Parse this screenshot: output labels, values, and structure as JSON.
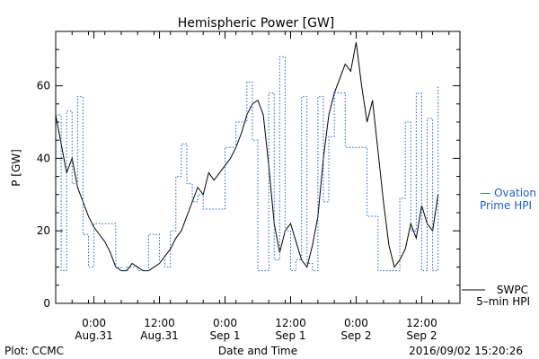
{
  "chart_data": {
    "type": "line",
    "title": "Hemispheric Power [GW]",
    "ylabel": "P [GW]",
    "xlabel": "Date and Time",
    "footer_left": "Plot: CCMC",
    "footer_right": "2016/09/02 15:20:26",
    "ylim": [
      0,
      75
    ],
    "yticks": [
      0,
      20,
      40,
      60
    ],
    "xlim": [
      "2016-08-30T17:00",
      "2016-09-02T19:00"
    ],
    "xticks": [
      {
        "t": "2016-08-31T00:00",
        "label1": "0:00",
        "label2": "Aug.31"
      },
      {
        "t": "2016-08-31T12:00",
        "label1": "12:00",
        "label2": "Aug.31"
      },
      {
        "t": "2016-09-01T00:00",
        "label1": "0:00",
        "label2": "Sep 1"
      },
      {
        "t": "2016-09-01T12:00",
        "label1": "12:00",
        "label2": "Sep 1"
      },
      {
        "t": "2016-09-02T00:00",
        "label1": "0:00",
        "label2": "Sep 2"
      },
      {
        "t": "2016-09-02T12:00",
        "label1": "12:00",
        "label2": "Sep 2"
      }
    ],
    "series": [
      {
        "name": "SWPC 5-min HPI",
        "color": "#000000",
        "style": "solid",
        "x": [
          "2016-08-30T17:00",
          "2016-08-30T18:00",
          "2016-08-30T19:00",
          "2016-08-30T20:00",
          "2016-08-30T21:00",
          "2016-08-30T22:00",
          "2016-08-30T23:00",
          "2016-08-31T00:00",
          "2016-08-31T01:00",
          "2016-08-31T02:00",
          "2016-08-31T03:00",
          "2016-08-31T04:00",
          "2016-08-31T05:00",
          "2016-08-31T06:00",
          "2016-08-31T07:00",
          "2016-08-31T08:00",
          "2016-08-31T09:00",
          "2016-08-31T10:00",
          "2016-08-31T11:00",
          "2016-08-31T12:00",
          "2016-08-31T13:00",
          "2016-08-31T14:00",
          "2016-08-31T15:00",
          "2016-08-31T16:00",
          "2016-08-31T17:00",
          "2016-08-31T18:00",
          "2016-08-31T19:00",
          "2016-08-31T20:00",
          "2016-08-31T21:00",
          "2016-08-31T22:00",
          "2016-08-31T23:00",
          "2016-09-01T00:00",
          "2016-09-01T01:00",
          "2016-09-01T02:00",
          "2016-09-01T03:00",
          "2016-09-01T04:00",
          "2016-09-01T05:00",
          "2016-09-01T06:00",
          "2016-09-01T07:00",
          "2016-09-01T08:00",
          "2016-09-01T09:00",
          "2016-09-01T10:00",
          "2016-09-01T11:00",
          "2016-09-01T12:00",
          "2016-09-01T13:00",
          "2016-09-01T14:00",
          "2016-09-01T15:00",
          "2016-09-01T16:00",
          "2016-09-01T17:00",
          "2016-09-01T18:00",
          "2016-09-01T19:00",
          "2016-09-01T20:00",
          "2016-09-01T21:00",
          "2016-09-01T22:00",
          "2016-09-01T23:00",
          "2016-09-02T00:00",
          "2016-09-02T01:00",
          "2016-09-02T02:00",
          "2016-09-02T03:00",
          "2016-09-02T04:00",
          "2016-09-02T05:00",
          "2016-09-02T06:00",
          "2016-09-02T07:00",
          "2016-09-02T08:00",
          "2016-09-02T09:00",
          "2016-09-02T10:00",
          "2016-09-02T11:00",
          "2016-09-02T12:00",
          "2016-09-02T13:00",
          "2016-09-02T14:00",
          "2016-09-02T15:00"
        ],
        "y": [
          52,
          44,
          36,
          40,
          32,
          28,
          24,
          21,
          19,
          17,
          14,
          10,
          9,
          9,
          11,
          10,
          9,
          9,
          10,
          11,
          13,
          15,
          18,
          20,
          24,
          28,
          32,
          30,
          36,
          34,
          36,
          38,
          40,
          43,
          47,
          52,
          55,
          56,
          52,
          38,
          22,
          14,
          20,
          22,
          17,
          12,
          10,
          16,
          24,
          40,
          52,
          58,
          62,
          66,
          64,
          72,
          60,
          50,
          56,
          42,
          28,
          16,
          10,
          12,
          15,
          22,
          18,
          27,
          22,
          20,
          30
        ]
      },
      {
        "name": "Ovation Prime HPI",
        "color": "#1f5fbf",
        "style": "dotted",
        "x": [
          "2016-08-30T17:00",
          "2016-08-30T18:00",
          "2016-08-30T19:00",
          "2016-08-30T20:00",
          "2016-08-30T21:00",
          "2016-08-30T22:00",
          "2016-08-30T23:00",
          "2016-08-31T00:00",
          "2016-08-31T02:00",
          "2016-08-31T04:00",
          "2016-08-31T05:00",
          "2016-08-31T06:00",
          "2016-08-31T08:00",
          "2016-08-31T10:00",
          "2016-08-31T12:00",
          "2016-08-31T13:00",
          "2016-08-31T14:00",
          "2016-08-31T15:00",
          "2016-08-31T16:00",
          "2016-08-31T17:00",
          "2016-08-31T18:00",
          "2016-08-31T19:00",
          "2016-08-31T20:00",
          "2016-08-31T21:00",
          "2016-08-31T22:00",
          "2016-09-01T00:00",
          "2016-09-01T02:00",
          "2016-09-01T04:00",
          "2016-09-01T05:00",
          "2016-09-01T06:00",
          "2016-09-01T07:00",
          "2016-09-01T08:00",
          "2016-09-01T09:00",
          "2016-09-01T10:00",
          "2016-09-01T11:00",
          "2016-09-01T12:00",
          "2016-09-01T13:00",
          "2016-09-01T14:00",
          "2016-09-01T15:00",
          "2016-09-01T16:00",
          "2016-09-01T17:00",
          "2016-09-01T18:00",
          "2016-09-01T19:00",
          "2016-09-01T20:00",
          "2016-09-01T22:00",
          "2016-09-02T00:00",
          "2016-09-02T02:00",
          "2016-09-02T04:00",
          "2016-09-02T06:00",
          "2016-09-02T08:00",
          "2016-09-02T09:00",
          "2016-09-02T10:00",
          "2016-09-02T11:00",
          "2016-09-02T12:00",
          "2016-09-02T13:00",
          "2016-09-02T14:00",
          "2016-09-02T15:00"
        ],
        "y": [
          52,
          9,
          53,
          33,
          57,
          19,
          10,
          22,
          22,
          10,
          9,
          10,
          9,
          19,
          12,
          10,
          20,
          35,
          44,
          33,
          28,
          30,
          26,
          26,
          26,
          43,
          50,
          61,
          45,
          9,
          9,
          58,
          12,
          68,
          20,
          9,
          12,
          57,
          11,
          9,
          57,
          28,
          46,
          58,
          43,
          43,
          24,
          9,
          9,
          29,
          50,
          20,
          58,
          9,
          51,
          9,
          60
        ]
      }
    ],
    "legend": [
      {
        "label1": "— Ovation",
        "label2": "Prime HPI",
        "color": "#1f5fbf"
      },
      {
        "label1": "SWPC",
        "label2": "5–min HPI",
        "color": "#000000"
      }
    ],
    "legend_position": "right",
    "grid": false
  }
}
